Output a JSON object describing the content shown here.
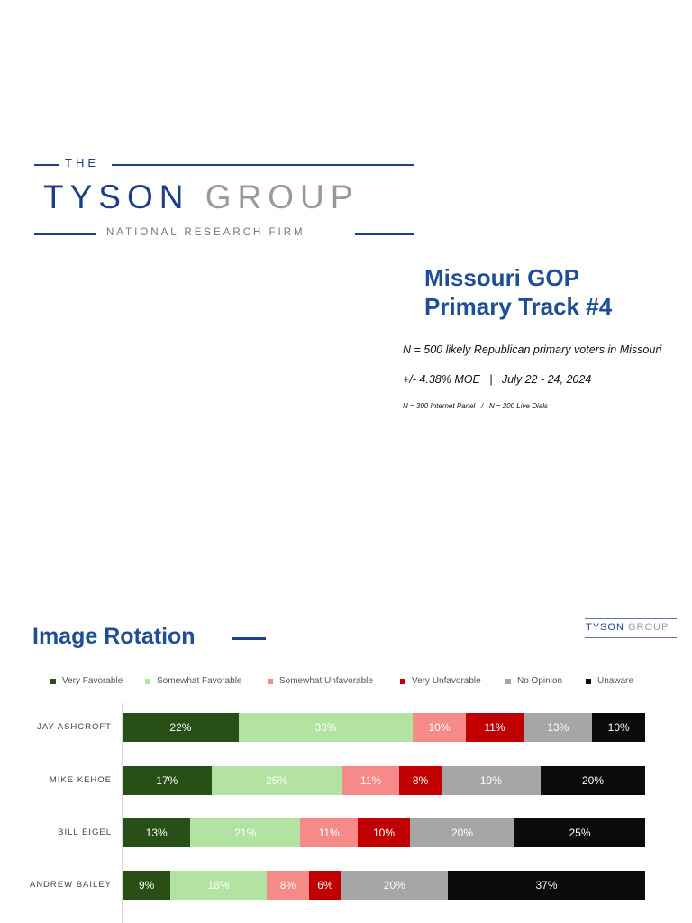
{
  "logo": {
    "the": "THE",
    "name_part1": "TYSON",
    "name_part2": "GROUP",
    "subtitle": "NATIONAL RESEARCH FIRM"
  },
  "cover": {
    "title_line1": "Missouri GOP",
    "title_line2": "Primary Track #4",
    "sample": "N = 500 likely Republican primary voters in Missouri",
    "moe_dates": "+/- 4.38% MOE   |   July 22 - 24, 2024",
    "modes": "N = 300 Internet Panel   /   N = 200 Live Dials"
  },
  "slide2": {
    "title": "Image Rotation"
  },
  "colors": {
    "very_favorable": "#284f16",
    "somewhat_favorable": "#b3e3a3",
    "somewhat_unfavorable": "#f58a88",
    "very_unfavorable": "#c00000",
    "no_opinion": "#a6a6a6",
    "unaware": "#0b0b0b"
  },
  "chart_data": {
    "type": "bar",
    "stacked": true,
    "orientation": "horizontal",
    "normalized_percent": true,
    "legend_position": "top",
    "categories": [
      "JAY ASHCROFT",
      "MIKE KEHOE",
      "BILL EIGEL",
      "ANDREW BAILEY"
    ],
    "series": [
      {
        "name": "Very Favorable",
        "values": [
          22,
          17,
          13,
          9
        ],
        "labels": [
          "22%",
          "17%",
          "13%",
          "9%"
        ]
      },
      {
        "name": "Somewhat Favorable",
        "values": [
          33,
          25,
          21,
          18
        ],
        "labels": [
          "33%",
          "25%",
          "21%",
          "18%"
        ]
      },
      {
        "name": "Somewhat Unfavorable",
        "values": [
          10,
          11,
          11,
          8
        ],
        "labels": [
          "10%",
          "11%",
          "11%",
          "8%"
        ]
      },
      {
        "name": "Very Unfavorable",
        "values": [
          11,
          8,
          10,
          6
        ],
        "labels": [
          "11%",
          "8%",
          "10%",
          "6%"
        ]
      },
      {
        "name": "No Opinion",
        "values": [
          13,
          19,
          20,
          20
        ],
        "labels": [
          "13%",
          "19%",
          "20%",
          "20%"
        ]
      },
      {
        "name": "Unaware",
        "values": [
          10,
          20,
          25,
          37
        ],
        "labels": [
          "10%",
          "20%",
          "25%",
          "37%"
        ]
      }
    ],
    "title": "",
    "xlabel": "",
    "ylabel": ""
  }
}
